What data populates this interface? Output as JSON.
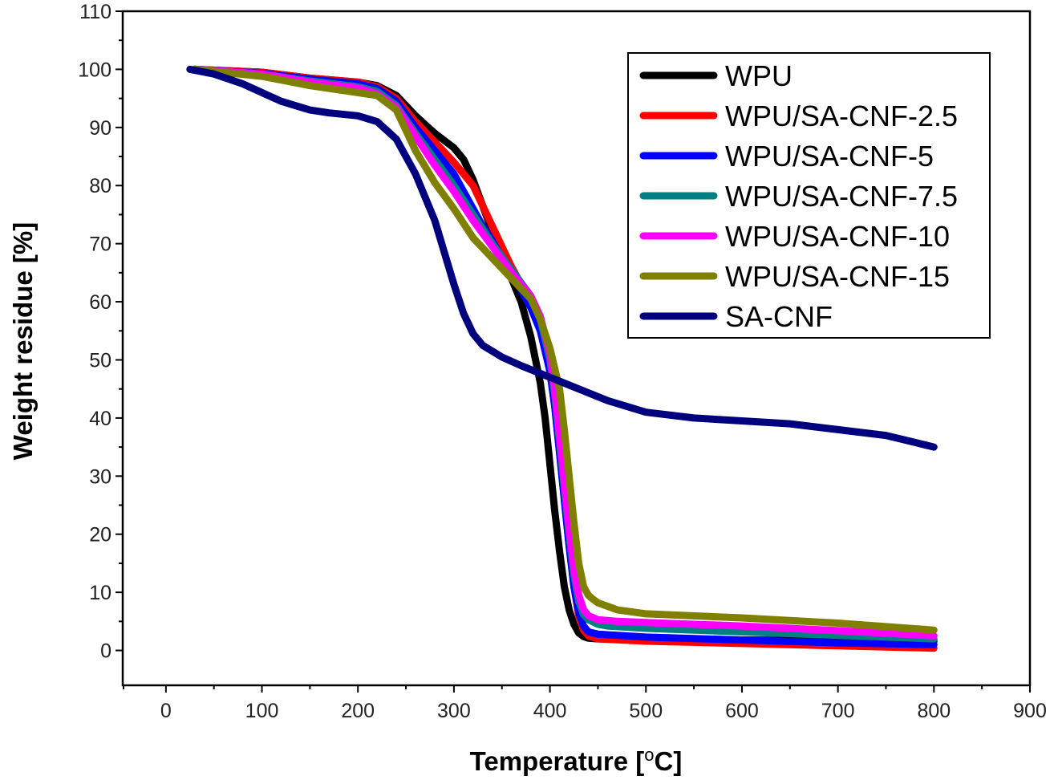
{
  "chart_data": {
    "type": "line",
    "title": "",
    "xlabel": "Temperature [°C]",
    "xlabel_main": "Temperature [",
    "xlabel_sup": "o",
    "xlabel_tail": "C]",
    "ylabel": "Weight residue [%]",
    "xlim": [
      -45,
      900
    ],
    "ylim": [
      -6,
      110
    ],
    "xticks": [
      0,
      100,
      200,
      300,
      400,
      500,
      600,
      700,
      800,
      900
    ],
    "yticks": [
      0,
      10,
      20,
      30,
      40,
      50,
      60,
      70,
      80,
      90,
      100,
      110
    ],
    "grid": false,
    "legend_position": "top-right",
    "series": [
      {
        "name": "WPU",
        "color": "#000000",
        "x": [
          30,
          100,
          150,
          200,
          220,
          240,
          260,
          280,
          300,
          310,
          320,
          330,
          340,
          350,
          360,
          370,
          380,
          390,
          395,
          400,
          405,
          410,
          415,
          420,
          425,
          430,
          435,
          440,
          450,
          500,
          600,
          700,
          800
        ],
        "y": [
          100,
          99.5,
          98.5,
          97.8,
          97.2,
          95.5,
          92,
          89,
          86.5,
          84.5,
          81,
          76.5,
          72,
          68,
          64,
          60,
          54,
          46,
          40,
          32,
          24,
          17,
          11,
          7,
          4.5,
          3,
          2.4,
          2.1,
          2,
          1.9,
          1.8,
          1.7,
          1.6
        ]
      },
      {
        "name": "WPU/SA-CNF-2.5",
        "color": "#ff0000",
        "x": [
          30,
          100,
          150,
          200,
          220,
          240,
          260,
          280,
          300,
          320,
          340,
          360,
          380,
          390,
          400,
          405,
          410,
          415,
          420,
          425,
          430,
          435,
          440,
          450,
          500,
          600,
          700,
          800
        ],
        "y": [
          100,
          99.5,
          98.5,
          97.8,
          97,
          95,
          91,
          87.5,
          84,
          80,
          73,
          66,
          60,
          56,
          48,
          42,
          34,
          26,
          18,
          11,
          6,
          3.5,
          2.5,
          2,
          1.6,
          1.2,
          0.8,
          0.4
        ]
      },
      {
        "name": "WPU/SA-CNF-5",
        "color": "#0000ff",
        "x": [
          30,
          100,
          150,
          200,
          220,
          240,
          260,
          280,
          300,
          320,
          330,
          340,
          350,
          360,
          370,
          380,
          390,
          400,
          405,
          410,
          415,
          420,
          425,
          430,
          435,
          440,
          450,
          500,
          600,
          700,
          800
        ],
        "y": [
          100,
          99.3,
          98.3,
          97.5,
          96.7,
          94.5,
          90,
          86,
          82,
          76,
          73,
          70.5,
          67.5,
          65,
          62,
          59,
          55,
          48,
          42,
          34,
          26,
          18,
          11,
          6.5,
          4.2,
          3.2,
          2.8,
          2.3,
          1.8,
          1.3,
          1.0
        ]
      },
      {
        "name": "WPU/SA-CNF-7.5",
        "color": "#008080",
        "x": [
          30,
          100,
          150,
          200,
          220,
          240,
          260,
          280,
          300,
          320,
          340,
          360,
          380,
          390,
          400,
          405,
          410,
          415,
          420,
          425,
          430,
          435,
          440,
          450,
          460,
          500,
          600,
          700,
          800
        ],
        "y": [
          100,
          99.2,
          98,
          97,
          96.2,
          93.8,
          89,
          84.5,
          80,
          75,
          70,
          65.5,
          61,
          57,
          50,
          44,
          36,
          28,
          20,
          13,
          8.5,
          6.2,
          5.3,
          4.5,
          4.2,
          3.8,
          3.2,
          2.6,
          2.0
        ]
      },
      {
        "name": "WPU/SA-CNF-10",
        "color": "#ff00ff",
        "x": [
          30,
          100,
          150,
          200,
          220,
          240,
          260,
          280,
          300,
          320,
          340,
          360,
          380,
          390,
          400,
          405,
          410,
          415,
          420,
          425,
          430,
          435,
          440,
          450,
          470,
          500,
          600,
          700,
          800
        ],
        "y": [
          100,
          99.2,
          97.8,
          96.8,
          95.8,
          93.5,
          88.5,
          83.5,
          79,
          74,
          69.5,
          65,
          61,
          57.5,
          51,
          45,
          37,
          29,
          21,
          14,
          9.5,
          7,
          6,
          5.3,
          5,
          4.8,
          4.2,
          3.4,
          2.5
        ]
      },
      {
        "name": "WPU/SA-CNF-15",
        "color": "#808000",
        "x": [
          30,
          100,
          150,
          200,
          220,
          240,
          250,
          260,
          280,
          300,
          320,
          340,
          360,
          380,
          390,
          400,
          410,
          415,
          420,
          425,
          430,
          435,
          440,
          445,
          450,
          470,
          500,
          600,
          700,
          800
        ],
        "y": [
          100,
          98.8,
          97.2,
          96,
          95.5,
          93,
          89.5,
          86,
          80.5,
          76,
          71,
          67.5,
          64,
          60.5,
          57,
          52,
          45,
          38,
          30,
          22,
          15,
          11,
          9.5,
          8.8,
          8.2,
          7,
          6.3,
          5.6,
          4.7,
          3.5
        ]
      },
      {
        "name": "SA-CNF",
        "color": "#00007f",
        "x": [
          25,
          50,
          80,
          100,
          120,
          150,
          170,
          200,
          220,
          240,
          260,
          280,
          300,
          310,
          320,
          330,
          340,
          350,
          370,
          400,
          430,
          460,
          500,
          550,
          600,
          650,
          700,
          750,
          800
        ],
        "y": [
          100,
          99.2,
          97.5,
          96,
          94.5,
          93,
          92.5,
          92,
          91,
          88,
          82,
          74,
          63,
          58,
          54.5,
          52.5,
          51.5,
          50.5,
          49,
          47,
          45,
          43,
          41,
          40,
          39.5,
          39,
          38,
          37,
          35
        ]
      }
    ]
  }
}
